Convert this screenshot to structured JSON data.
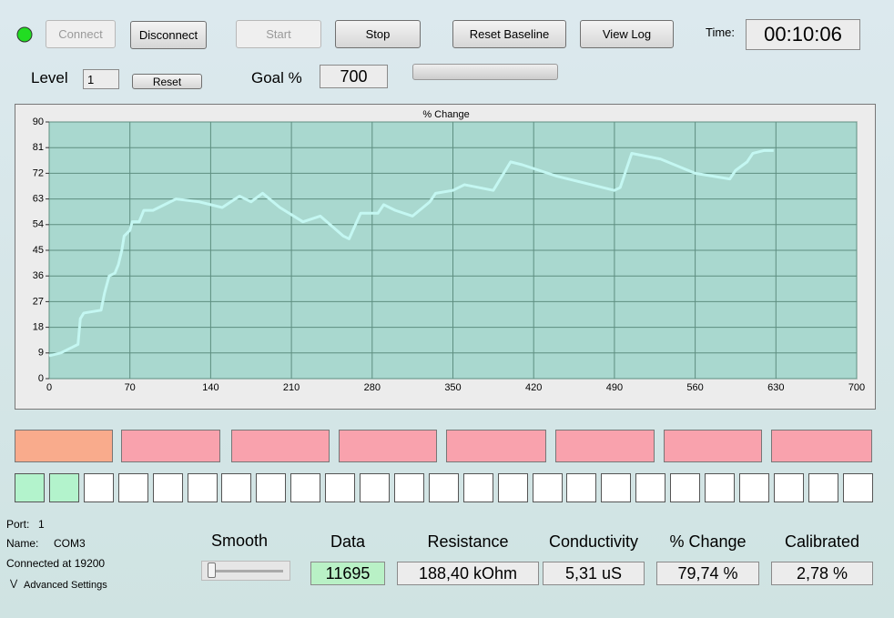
{
  "toolbar": {
    "buttons": [
      "Connect",
      "Disconnect",
      "Start",
      "Stop",
      "Reset Baseline",
      "View Log"
    ],
    "time_label": "Time:",
    "time": "00:10:06"
  },
  "level": {
    "label": "Level",
    "value": "1",
    "reset": "Reset",
    "goal_label": "Goal %",
    "goal": "700"
  },
  "chart_data": {
    "type": "line",
    "title": "% Change",
    "color": "#c4f7f2",
    "grid": true,
    "x": [
      0,
      10,
      20,
      25,
      27,
      30,
      45,
      48,
      52,
      57,
      60,
      63,
      65,
      70,
      72,
      78,
      82,
      90,
      100,
      110,
      130,
      150,
      165,
      175,
      185,
      200,
      220,
      235,
      255,
      260,
      270,
      285,
      290,
      300,
      315,
      330,
      335,
      350,
      360,
      385,
      400,
      410,
      440,
      470,
      490,
      495,
      505,
      530,
      560,
      590,
      595,
      605,
      610,
      620,
      628
    ],
    "values": [
      8,
      9,
      11,
      12,
      21,
      23,
      24,
      30,
      36,
      37,
      40,
      45,
      50,
      52,
      55,
      55,
      59,
      59,
      61,
      63,
      62,
      60,
      64,
      62,
      65,
      60,
      55,
      57,
      50,
      49,
      58,
      58,
      61,
      59,
      57,
      62,
      65,
      66,
      68,
      66,
      76,
      75,
      71,
      68,
      66,
      67,
      79,
      77,
      72,
      70,
      73,
      76,
      79,
      80,
      80
    ],
    "xlim": [
      0,
      700
    ],
    "xticks": [
      0,
      70,
      140,
      210,
      280,
      350,
      420,
      490,
      560,
      630,
      700
    ],
    "ylim": [
      0,
      90
    ],
    "yticks": [
      0,
      9,
      18,
      27,
      36,
      45,
      54,
      63,
      72,
      81,
      90
    ]
  },
  "status": {
    "port_label": "Port:",
    "port": "1",
    "name_label": "Name:",
    "name": "COM3",
    "connected": "Connected at 19200",
    "advanced": "Advanced Settings"
  },
  "readouts": {
    "smooth": "Smooth",
    "items": [
      {
        "label": "Data",
        "value": "11695"
      },
      {
        "label": "Resistance",
        "value": "188,40 kOhm"
      },
      {
        "label": "Conductivity",
        "value": "5,31 uS"
      },
      {
        "label": "% Change",
        "value": "79,74 %"
      },
      {
        "label": "Calibrated",
        "value": "2,78 %"
      }
    ]
  }
}
